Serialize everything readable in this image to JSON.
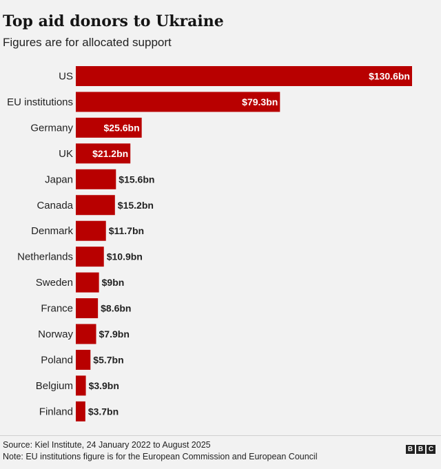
{
  "header": {
    "title": "Top aid donors to Ukraine",
    "subtitle": "Figures are for allocated support"
  },
  "footer": {
    "source": "Source: Kiel Institute, 24 January 2022 to August 2025",
    "note": "Note: EU institutions figure is for the European Commission and European Council",
    "logo": [
      "B",
      "B",
      "C"
    ]
  },
  "colors": {
    "bar": "#b80000",
    "background": "#f2f2f2",
    "text": "#222222"
  },
  "chart_data": {
    "type": "bar",
    "orientation": "horizontal",
    "title": "Top aid donors to Ukraine",
    "subtitle": "Figures are for allocated support",
    "unit": "$bn",
    "categories": [
      "US",
      "EU institutions",
      "Germany",
      "UK",
      "Japan",
      "Canada",
      "Denmark",
      "Netherlands",
      "Sweden",
      "France",
      "Norway",
      "Poland",
      "Belgium",
      "Finland"
    ],
    "values": [
      130.6,
      79.3,
      25.6,
      21.2,
      15.6,
      15.2,
      11.7,
      10.9,
      9,
      8.6,
      7.9,
      5.7,
      3.9,
      3.7
    ],
    "labels": [
      "$130.6bn",
      "$79.3bn",
      "$25.6bn",
      "$21.2bn",
      "$15.6bn",
      "$15.2bn",
      "$11.7bn",
      "$10.9bn",
      "$9bn",
      "$8.6bn",
      "$7.9bn",
      "$5.7bn",
      "$3.9bn",
      "$3.7bn"
    ],
    "xlim": [
      0,
      130.6
    ],
    "grid": false,
    "legend": "none"
  }
}
